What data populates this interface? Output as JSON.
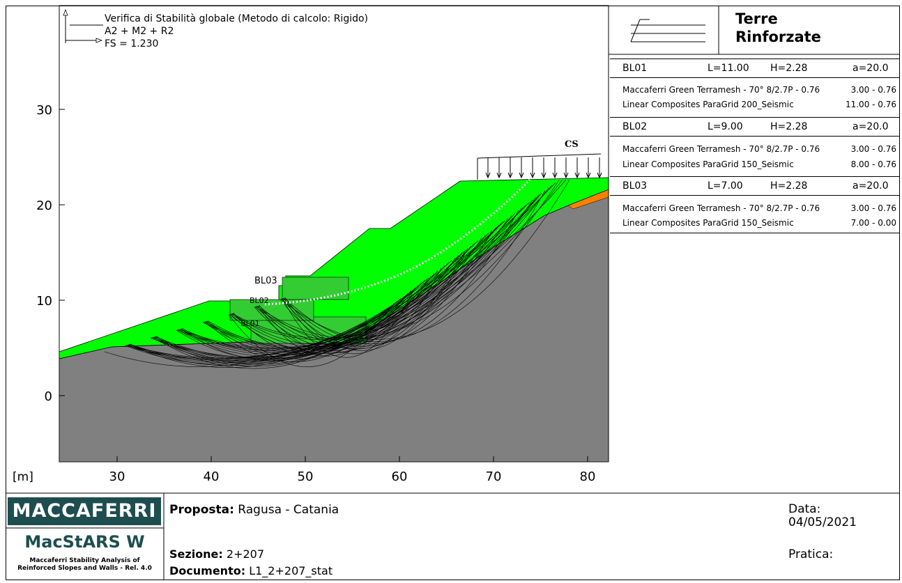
{
  "plot": {
    "title_lines": [
      "Verifica di Stabilità globale (Metodo di calcolo: Rigido)",
      "A2 + M2 + R2",
      "FS = 1.230"
    ],
    "y_ticks": [
      "30",
      "20",
      "10",
      "0"
    ],
    "x_ticks": [
      "30",
      "40",
      "50",
      "60",
      "70",
      "80"
    ],
    "unit_label": "[m]",
    "block_labels": [
      "BL03",
      "BL02",
      "BL01"
    ],
    "load_label": "CS"
  },
  "legend": {
    "title_line1": "Terre",
    "title_line2": "Rinforzate"
  },
  "blocks": [
    {
      "name": "BL01",
      "L": "L=11.00",
      "H": "H=2.28",
      "a": "a=20.0",
      "materials": [
        {
          "name": "Maccaferri Green Terramesh - 70° 8/2.7P - 0.76",
          "value": "3.00 - 0.76"
        },
        {
          "name": "Linear Composites ParaGrid 200_Seismic",
          "value": "11.00 - 0.76"
        }
      ]
    },
    {
      "name": "BL02",
      "L": "L=9.00",
      "H": "H=2.28",
      "a": "a=20.0",
      "materials": [
        {
          "name": "Maccaferri Green Terramesh - 70° 8/2.7P - 0.76",
          "value": "3.00 - 0.76"
        },
        {
          "name": "Linear Composites ParaGrid 150_Seismic",
          "value": "8.00 - 0.76"
        }
      ]
    },
    {
      "name": "BL03",
      "L": "L=7.00",
      "H": "H=2.28",
      "a": "a=20.0",
      "materials": [
        {
          "name": "Maccaferri Green Terramesh - 70° 8/2.7P - 0.76",
          "value": "3.00 - 0.76"
        },
        {
          "name": "Linear Composites ParaGrid 150_Seismic",
          "value": "7.00 - 0.00"
        }
      ]
    }
  ],
  "footer": {
    "brand": "MACCAFERRI",
    "product": "MacStARS W",
    "product_sub1": "Maccaferri Stability Analysis of",
    "product_sub2": "Reinforced Slopes and Walls - Rel. 4.0",
    "proposta_label": "Proposta:",
    "proposta_value": "Ragusa - Catania",
    "sezione_label": "Sezione:",
    "sezione_value": "2+207",
    "documento_label": "Documento:",
    "documento_value": "L1_2+207_stat",
    "data_label": "Data:",
    "data_value": "04/05/2021",
    "pratica_label": "Pratica:"
  },
  "colors": {
    "soil": "#808080",
    "fill": "#00ff00",
    "reinforced": "#33cc33",
    "orange": "#ff8000",
    "brand_bg": "#1d4d4f"
  }
}
